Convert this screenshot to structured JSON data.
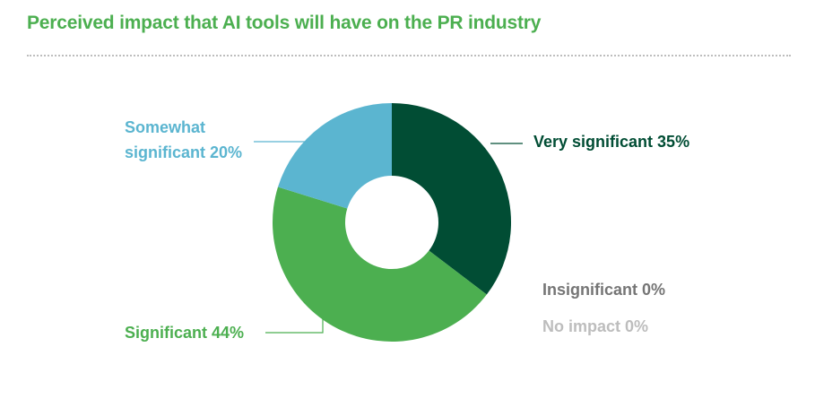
{
  "title": "Perceived impact that AI tools will have on the PR industry",
  "chart_data": {
    "type": "pie",
    "donut": true,
    "title": "Perceived impact that AI tools will have on the PR industry",
    "slices": [
      {
        "label": "Very significant",
        "value": 35,
        "display": "Very significant 35%",
        "color": "#014d34"
      },
      {
        "label": "Significant",
        "value": 44,
        "display": "Significant 44%",
        "color": "#4caf50"
      },
      {
        "label": "Somewhat significant",
        "value": 20,
        "display": "Somewhat significant 20%",
        "display_lines": [
          "Somewhat",
          "significant 20%"
        ],
        "color": "#5bb5d0"
      },
      {
        "label": "Insignificant",
        "value": 0,
        "display": "Insignificant 0%",
        "color": "#757575"
      },
      {
        "label": "No impact",
        "value": 0,
        "display": "No impact 0%",
        "color": "#bdbdbd"
      }
    ],
    "unit": "%"
  }
}
